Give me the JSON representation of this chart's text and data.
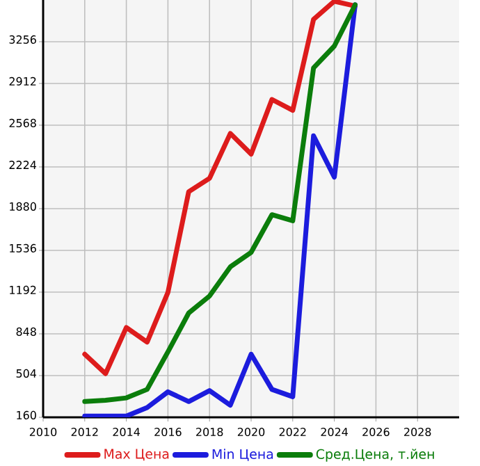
{
  "chart_data": {
    "type": "line",
    "x": [
      2012,
      2013,
      2014,
      2015,
      2016,
      2017,
      2018,
      2019,
      2020,
      2021,
      2022,
      2023,
      2024,
      2025
    ],
    "series": [
      {
        "name": "Max Цена",
        "color": "#dd1c1c",
        "values": [
          680,
          520,
          900,
          780,
          1190,
          2020,
          2130,
          2500,
          2330,
          2780,
          2690,
          3440,
          3590,
          3550
        ]
      },
      {
        "name": "Min Цена",
        "color": "#1c1cdd",
        "values": [
          170,
          170,
          170,
          240,
          370,
          290,
          380,
          260,
          680,
          390,
          330,
          2480,
          2140,
          3560
        ]
      },
      {
        "name": "Сред.Цена, т.йен",
        "color": "#0b7d0b",
        "values": [
          290,
          300,
          320,
          390,
          700,
          1020,
          1160,
          1400,
          1520,
          1830,
          1780,
          3040,
          3220,
          3560
        ]
      }
    ],
    "xlim": [
      2010,
      2030
    ],
    "xticks": [
      2010,
      2012,
      2014,
      2016,
      2018,
      2020,
      2022,
      2024,
      2026,
      2028
    ],
    "ylim": [
      160,
      3600
    ],
    "yticks": [
      160,
      504,
      848,
      1192,
      1536,
      1880,
      2224,
      2568,
      2912,
      3256
    ],
    "grid": true,
    "legend": "bottom",
    "marker": "none",
    "line_style": "solid"
  }
}
